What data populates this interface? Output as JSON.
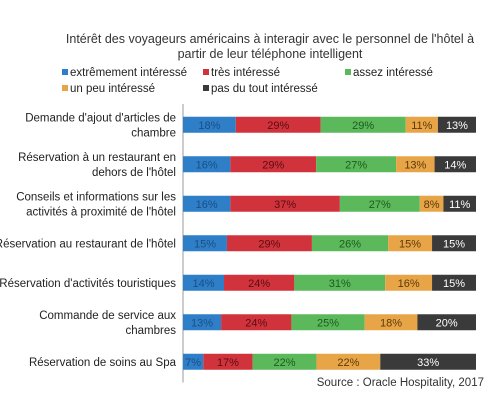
{
  "chart_data": {
    "type": "bar",
    "orientation": "horizontal",
    "stacked": "percent",
    "title_lines": [
      "Intérêt des voyageurs américains à interagir avec le personnel de l'hôtel à",
      "partir de leur téléphone intelligent"
    ],
    "legend_placement": "top",
    "categories": [
      [
        "Demande d'ajout d'articles de",
        "chambre"
      ],
      [
        "Réservation à un restaurant en",
        "dehors de l'hôtel"
      ],
      [
        "Conseils et informations sur les",
        "activités  à proximité de l'hôtel"
      ],
      [
        "Réservation au restaurant de l'hôtel"
      ],
      [
        "Réservation d'activités touristiques"
      ],
      [
        "Commande de service aux",
        "chambres"
      ],
      [
        "Réservation de soins au Spa"
      ]
    ],
    "series": [
      {
        "name": "extrêmement intéressé",
        "color": "#2f7ec8",
        "values": [
          18,
          16,
          16,
          15,
          14,
          13,
          7
        ],
        "labels": [
          "18%",
          "16%",
          "16%",
          "15%",
          "14%",
          "13%",
          "7%"
        ]
      },
      {
        "name": "très intéressé",
        "color": "#d0333b",
        "values": [
          29,
          29,
          37,
          29,
          24,
          24,
          17
        ],
        "labels": [
          "29%",
          "29%",
          "37%",
          "29%",
          "24%",
          "24%",
          "17%"
        ]
      },
      {
        "name": "assez intéressé",
        "color": "#5bb85b",
        "values": [
          29,
          27,
          27,
          26,
          31,
          25,
          22
        ],
        "labels": [
          "29%",
          "27%",
          "27%",
          "26%",
          "31%",
          "25%",
          "22%"
        ]
      },
      {
        "name": "un peu intéressé",
        "color": "#e8a548",
        "values": [
          11,
          13,
          8,
          15,
          16,
          18,
          22
        ],
        "labels": [
          "11%",
          "13%",
          "8%",
          "15%",
          "16%",
          "18%",
          "22%"
        ]
      },
      {
        "name": "pas du tout intéressé",
        "color": "#3a3a3a",
        "values": [
          13,
          14,
          11,
          15,
          15,
          20,
          33
        ],
        "labels": [
          "13%",
          "14%",
          "11%",
          "15%",
          "15%",
          "20%",
          "33%"
        ]
      }
    ],
    "value_label_colors": [
      "#1a4f82",
      "#5a0d12",
      "#1f5a1f",
      "#5a3a08",
      "#ffffff"
    ],
    "source": "Source : Oracle Hospitality, 2017"
  }
}
